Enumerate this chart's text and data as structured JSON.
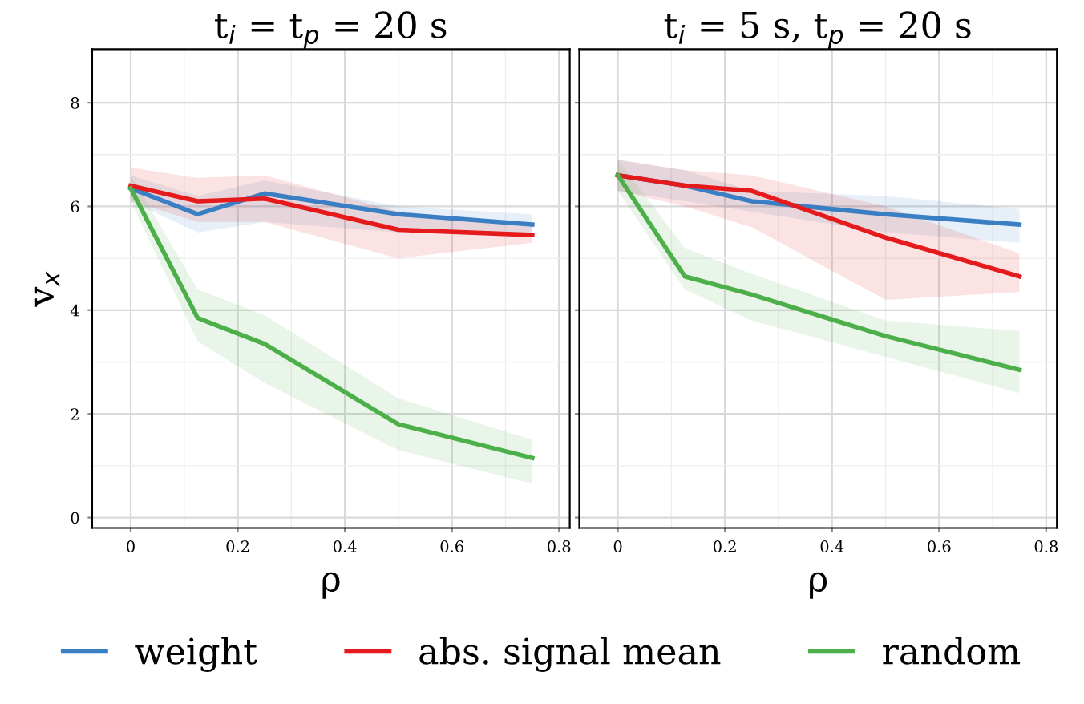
{
  "chart_data": [
    {
      "type": "line",
      "title": "t$_{i}$ = t$_{p}$ = 20 s",
      "xlabel": "ρ",
      "ylabel": "v$_{x}$",
      "x": [
        0,
        0.125,
        0.25,
        0.5,
        0.75
      ],
      "xlim": [
        -0.072,
        0.82
      ],
      "ylim": [
        -0.2,
        9.03
      ],
      "xticks": [
        0,
        0.2,
        0.4,
        0.6,
        0.8
      ],
      "yticks": [
        0,
        2,
        4,
        6,
        8
      ],
      "grid": true,
      "legend": "bottom",
      "series": [
        {
          "name": "weight",
          "color": "#3a7fc4",
          "values": [
            6.35,
            5.85,
            6.25,
            5.85,
            5.65
          ],
          "lower": [
            6.1,
            5.5,
            5.7,
            5.5,
            5.5
          ],
          "upper": [
            6.6,
            6.2,
            6.5,
            6.0,
            5.85
          ]
        },
        {
          "name": "abs. signal mean",
          "color": "#e41a1c",
          "values": [
            6.4,
            6.1,
            6.15,
            5.55,
            5.45
          ],
          "lower": [
            6.1,
            5.7,
            5.7,
            5.0,
            5.3
          ],
          "upper": [
            6.75,
            6.55,
            6.6,
            5.9,
            5.6
          ]
        },
        {
          "name": "random",
          "color": "#4daf4a",
          "values": [
            6.35,
            3.85,
            3.35,
            1.8,
            1.15
          ],
          "lower": [
            6.1,
            3.4,
            2.6,
            1.3,
            0.65
          ],
          "upper": [
            6.6,
            4.4,
            3.9,
            2.3,
            1.5
          ]
        }
      ]
    },
    {
      "type": "line",
      "title": "t$_{i}$ = 5 s, t$_{p}$ = 20 s",
      "xlabel": "ρ",
      "x": [
        0,
        0.125,
        0.25,
        0.5,
        0.75
      ],
      "xlim": [
        -0.072,
        0.82
      ],
      "ylim": [
        -0.2,
        9.03
      ],
      "xticks": [
        0,
        0.2,
        0.4,
        0.6,
        0.8
      ],
      "yticks": [
        0,
        2,
        4,
        6,
        8
      ],
      "grid": true,
      "tick_labels": "x",
      "series": [
        {
          "name": "weight",
          "color": "#3a7fc4",
          "values": [
            6.6,
            6.4,
            6.1,
            5.85,
            5.65
          ],
          "lower": [
            6.3,
            6.1,
            5.9,
            5.5,
            5.3
          ],
          "upper": [
            6.9,
            6.7,
            6.3,
            6.2,
            5.95
          ]
        },
        {
          "name": "abs. signal mean",
          "color": "#e41a1c",
          "values": [
            6.6,
            6.4,
            6.3,
            5.4,
            4.65
          ],
          "lower": [
            6.3,
            6.0,
            5.6,
            4.2,
            4.35
          ],
          "upper": [
            6.9,
            6.7,
            6.6,
            6.0,
            5.1
          ]
        },
        {
          "name": "random",
          "color": "#4daf4a",
          "values": [
            6.6,
            4.65,
            4.3,
            3.5,
            2.85
          ],
          "lower": [
            6.3,
            4.4,
            3.8,
            3.1,
            2.4
          ],
          "upper": [
            6.9,
            5.2,
            4.7,
            3.8,
            3.6
          ]
        }
      ]
    }
  ]
}
